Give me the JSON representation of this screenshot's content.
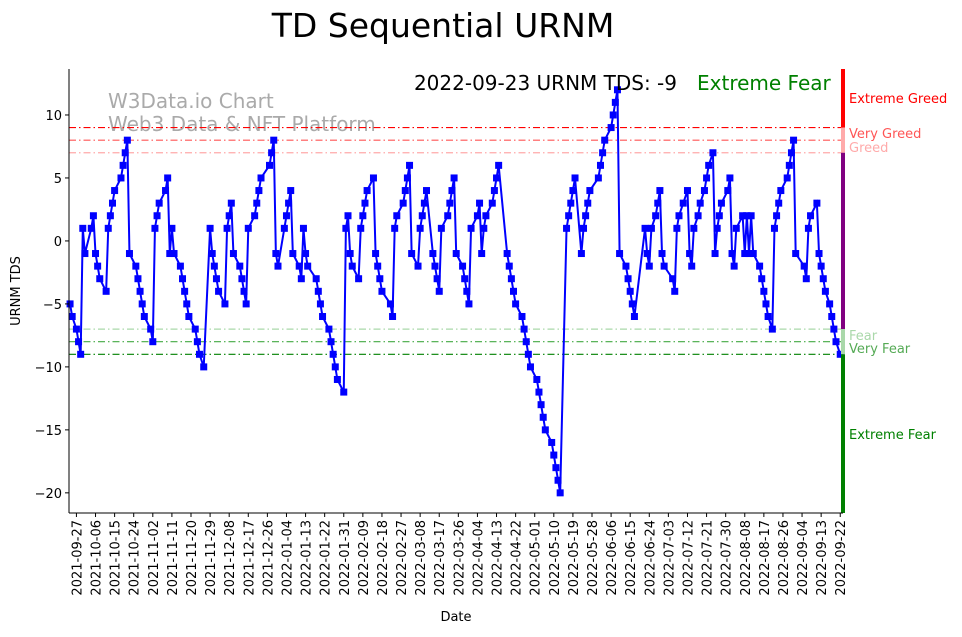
{
  "chart_data": {
    "type": "line",
    "title": "TD Sequential URNM",
    "xlabel": "Date",
    "ylabel": "URNM TDS",
    "ylim": [
      -21.6,
      13.65
    ],
    "y_ticks": [
      10,
      5,
      0,
      -5,
      -10,
      -15,
      -20
    ],
    "x_tick_labels": [
      "2021-09-27",
      "2021-10-06",
      "2021-10-15",
      "2021-10-24",
      "2021-11-02",
      "2021-11-11",
      "2021-11-20",
      "2021-11-29",
      "2021-12-08",
      "2021-12-17",
      "2021-12-26",
      "2022-01-04",
      "2022-01-13",
      "2022-01-22",
      "2022-01-31",
      "2022-02-09",
      "2022-02-18",
      "2022-02-27",
      "2022-03-08",
      "2022-03-17",
      "2022-03-26",
      "2022-04-04",
      "2022-04-13",
      "2022-04-22",
      "2022-05-01",
      "2022-05-10",
      "2022-05-19",
      "2022-05-28",
      "2022-06-06",
      "2022-06-15",
      "2022-06-24",
      "2022-07-03",
      "2022-07-12",
      "2022-07-21",
      "2022-07-30",
      "2022-08-08",
      "2022-08-17",
      "2022-08-26",
      "2022-09-04",
      "2022-09-13",
      "2022-09-22"
    ],
    "start_date": "2021-09-24",
    "series": [
      {
        "name": "URNM TDS",
        "color": "#0000ff",
        "points_day_offset_value": [
          [
            0,
            -5
          ],
          [
            1,
            -6
          ],
          [
            3,
            -7
          ],
          [
            4,
            -8
          ],
          [
            5,
            -9
          ],
          [
            6,
            1
          ],
          [
            7,
            -1
          ],
          [
            10,
            1
          ],
          [
            11,
            2
          ],
          [
            12,
            -1
          ],
          [
            13,
            -2
          ],
          [
            14,
            -3
          ],
          [
            17,
            -4
          ],
          [
            18,
            1
          ],
          [
            19,
            2
          ],
          [
            20,
            3
          ],
          [
            21,
            4
          ],
          [
            24,
            5
          ],
          [
            25,
            6
          ],
          [
            26,
            7
          ],
          [
            27,
            8
          ],
          [
            28,
            -1
          ],
          [
            31,
            -2
          ],
          [
            32,
            -3
          ],
          [
            33,
            -4
          ],
          [
            34,
            -5
          ],
          [
            35,
            -6
          ],
          [
            38,
            -7
          ],
          [
            39,
            -8
          ],
          [
            40,
            1
          ],
          [
            41,
            2
          ],
          [
            42,
            3
          ],
          [
            45,
            4
          ],
          [
            46,
            5
          ],
          [
            47,
            -1
          ],
          [
            48,
            1
          ],
          [
            49,
            -1
          ],
          [
            52,
            -2
          ],
          [
            53,
            -3
          ],
          [
            54,
            -4
          ],
          [
            55,
            -5
          ],
          [
            56,
            -6
          ],
          [
            59,
            -7
          ],
          [
            60,
            -8
          ],
          [
            61,
            -9
          ],
          [
            63,
            -10
          ],
          [
            66,
            1
          ],
          [
            67,
            -1
          ],
          [
            68,
            -2
          ],
          [
            69,
            -3
          ],
          [
            70,
            -4
          ],
          [
            73,
            -5
          ],
          [
            74,
            1
          ],
          [
            75,
            2
          ],
          [
            76,
            3
          ],
          [
            77,
            -1
          ],
          [
            80,
            -2
          ],
          [
            81,
            -3
          ],
          [
            82,
            -4
          ],
          [
            83,
            -5
          ],
          [
            84,
            1
          ],
          [
            87,
            2
          ],
          [
            88,
            3
          ],
          [
            89,
            4
          ],
          [
            90,
            5
          ],
          [
            94,
            6
          ],
          [
            95,
            7
          ],
          [
            96,
            8
          ],
          [
            97,
            -1
          ],
          [
            98,
            -2
          ],
          [
            101,
            1
          ],
          [
            102,
            2
          ],
          [
            103,
            3
          ],
          [
            104,
            4
          ],
          [
            105,
            -1
          ],
          [
            108,
            -2
          ],
          [
            109,
            -3
          ],
          [
            110,
            1
          ],
          [
            111,
            -1
          ],
          [
            112,
            -2
          ],
          [
            116,
            -3
          ],
          [
            117,
            -4
          ],
          [
            118,
            -5
          ],
          [
            119,
            -6
          ],
          [
            122,
            -7
          ],
          [
            123,
            -8
          ],
          [
            124,
            -9
          ],
          [
            125,
            -10
          ],
          [
            126,
            -11
          ],
          [
            129,
            -12
          ],
          [
            130,
            1
          ],
          [
            131,
            2
          ],
          [
            132,
            -1
          ],
          [
            133,
            -2
          ],
          [
            136,
            -3
          ],
          [
            137,
            1
          ],
          [
            138,
            2
          ],
          [
            139,
            3
          ],
          [
            140,
            4
          ],
          [
            143,
            5
          ],
          [
            144,
            -1
          ],
          [
            145,
            -2
          ],
          [
            146,
            -3
          ],
          [
            147,
            -4
          ],
          [
            151,
            -5
          ],
          [
            152,
            -6
          ],
          [
            153,
            1
          ],
          [
            154,
            2
          ],
          [
            157,
            3
          ],
          [
            158,
            4
          ],
          [
            159,
            5
          ],
          [
            160,
            6
          ],
          [
            161,
            -1
          ],
          [
            164,
            -2
          ],
          [
            165,
            1
          ],
          [
            166,
            2
          ],
          [
            167,
            3
          ],
          [
            168,
            4
          ],
          [
            171,
            -1
          ],
          [
            172,
            -2
          ],
          [
            173,
            -3
          ],
          [
            174,
            -4
          ],
          [
            175,
            1
          ],
          [
            178,
            2
          ],
          [
            179,
            3
          ],
          [
            180,
            4
          ],
          [
            181,
            5
          ],
          [
            182,
            -1
          ],
          [
            185,
            -2
          ],
          [
            186,
            -3
          ],
          [
            187,
            -4
          ],
          [
            188,
            -5
          ],
          [
            189,
            1
          ],
          [
            192,
            2
          ],
          [
            193,
            3
          ],
          [
            194,
            -1
          ],
          [
            195,
            1
          ],
          [
            196,
            2
          ],
          [
            199,
            3
          ],
          [
            200,
            4
          ],
          [
            201,
            5
          ],
          [
            202,
            6
          ],
          [
            206,
            -1
          ],
          [
            207,
            -2
          ],
          [
            208,
            -3
          ],
          [
            209,
            -4
          ],
          [
            210,
            -5
          ],
          [
            213,
            -6
          ],
          [
            214,
            -7
          ],
          [
            215,
            -8
          ],
          [
            216,
            -9
          ],
          [
            217,
            -10
          ],
          [
            220,
            -11
          ],
          [
            221,
            -12
          ],
          [
            222,
            -13
          ],
          [
            223,
            -14
          ],
          [
            224,
            -15
          ],
          [
            227,
            -16
          ],
          [
            228,
            -17
          ],
          [
            229,
            -18
          ],
          [
            230,
            -19
          ],
          [
            231,
            -20
          ],
          [
            234,
            1
          ],
          [
            235,
            2
          ],
          [
            236,
            3
          ],
          [
            237,
            4
          ],
          [
            238,
            5
          ],
          [
            241,
            -1
          ],
          [
            242,
            1
          ],
          [
            243,
            2
          ],
          [
            244,
            3
          ],
          [
            245,
            4
          ],
          [
            249,
            5
          ],
          [
            250,
            6
          ],
          [
            251,
            7
          ],
          [
            252,
            8
          ],
          [
            255,
            9
          ],
          [
            256,
            10
          ],
          [
            257,
            11
          ],
          [
            258,
            12
          ],
          [
            259,
            -1
          ],
          [
            262,
            -2
          ],
          [
            263,
            -3
          ],
          [
            264,
            -4
          ],
          [
            265,
            -5
          ],
          [
            266,
            -6
          ],
          [
            271,
            1
          ],
          [
            272,
            -1
          ],
          [
            273,
            -2
          ],
          [
            274,
            1
          ],
          [
            276,
            2
          ],
          [
            277,
            3
          ],
          [
            278,
            4
          ],
          [
            279,
            -1
          ],
          [
            280,
            -2
          ],
          [
            284,
            -3
          ],
          [
            285,
            -4
          ],
          [
            286,
            1
          ],
          [
            287,
            2
          ],
          [
            289,
            3
          ],
          [
            291,
            4
          ],
          [
            292,
            -1
          ],
          [
            293,
            -2
          ],
          [
            294,
            1
          ],
          [
            296,
            2
          ],
          [
            297,
            3
          ],
          [
            299,
            4
          ],
          [
            300,
            5
          ],
          [
            301,
            6
          ],
          [
            303,
            7
          ],
          [
            304,
            -1
          ],
          [
            305,
            1
          ],
          [
            306,
            2
          ],
          [
            307,
            3
          ],
          [
            310,
            4
          ],
          [
            311,
            5
          ],
          [
            312,
            -1
          ],
          [
            313,
            -2
          ],
          [
            314,
            1
          ],
          [
            317,
            2
          ],
          [
            318,
            -1
          ],
          [
            319,
            2
          ],
          [
            320,
            -1
          ],
          [
            321,
            2
          ],
          [
            322,
            -1
          ],
          [
            325,
            -2
          ],
          [
            326,
            -3
          ],
          [
            327,
            -4
          ],
          [
            328,
            -5
          ],
          [
            329,
            -6
          ],
          [
            331,
            -7
          ],
          [
            332,
            1
          ],
          [
            333,
            2
          ],
          [
            334,
            3
          ],
          [
            335,
            4
          ],
          [
            338,
            5
          ],
          [
            339,
            6
          ],
          [
            340,
            7
          ],
          [
            341,
            8
          ],
          [
            342,
            -1
          ],
          [
            346,
            -2
          ],
          [
            347,
            -3
          ],
          [
            348,
            1
          ],
          [
            349,
            2
          ],
          [
            352,
            3
          ],
          [
            353,
            -1
          ],
          [
            354,
            -2
          ],
          [
            355,
            -3
          ],
          [
            356,
            -4
          ],
          [
            358,
            -5
          ],
          [
            359,
            -6
          ],
          [
            360,
            -7
          ],
          [
            361,
            -8
          ],
          [
            363,
            -9
          ]
        ]
      }
    ],
    "threshold_lines": [
      {
        "level": 9,
        "color": "#ff0000"
      },
      {
        "level": 8,
        "color": "#ff5555"
      },
      {
        "level": 7,
        "color": "#ffaaaa"
      },
      {
        "level": -7,
        "color": "#aad8aa"
      },
      {
        "level": -8,
        "color": "#44aa44"
      },
      {
        "level": -9,
        "color": "#008000"
      }
    ],
    "zone_bar": [
      {
        "from": 9,
        "to": 13.65,
        "color": "#ff0000"
      },
      {
        "from": 7,
        "to": 9,
        "color": "#ffaaaa"
      },
      {
        "from": -7,
        "to": 7,
        "color": "#800080"
      },
      {
        "from": -9,
        "to": -7,
        "color": "#aad8aa"
      },
      {
        "from": -21.6,
        "to": -9,
        "color": "#008000"
      }
    ],
    "zone_labels": [
      {
        "text": "Extreme Greed",
        "color": "#ff0000"
      },
      {
        "text": "Very Greed",
        "color": "#ff5555"
      },
      {
        "text": "Greed",
        "color": "#ffaaaa"
      },
      {
        "text": "Fear",
        "color": "#aad8aa"
      },
      {
        "text": "Very Fear",
        "color": "#55aa55"
      },
      {
        "text": "Extreme Fear",
        "color": "#008000"
      }
    ],
    "annotation": {
      "text": "2022-09-23 URNM TDS: -9",
      "status": "Extreme Fear",
      "status_color": "#008000"
    },
    "watermark": [
      "W3Data.io Chart",
      "Web3 Data & NFT Platform"
    ],
    "grid": false,
    "legend": "none"
  }
}
